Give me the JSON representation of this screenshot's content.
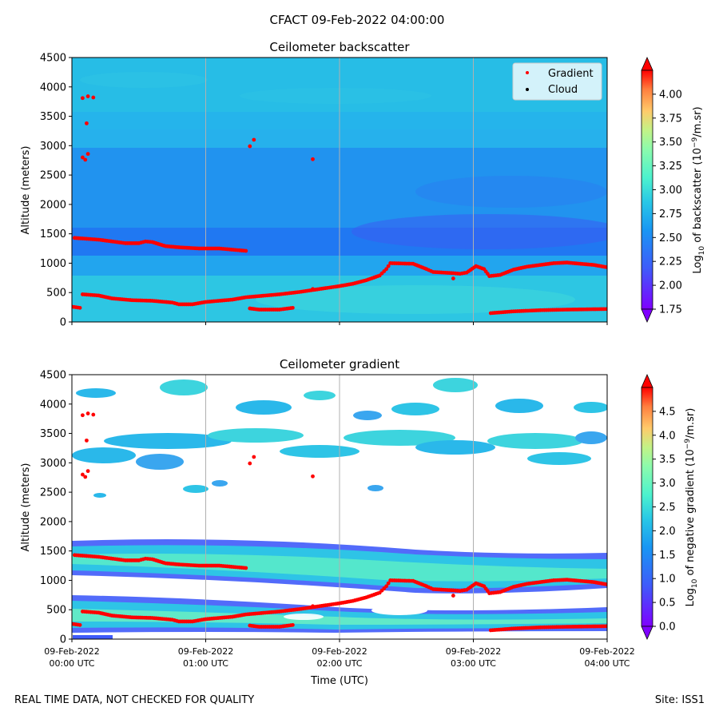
{
  "title": "CFACT 09-Feb-2022 04:00:00",
  "footer": {
    "left": "REAL TIME DATA, NOT CHECKED FOR QUALITY",
    "right": "Site: ISS1"
  },
  "x_axis": {
    "label": "Time (UTC)",
    "range_hours": [
      0,
      4
    ],
    "ticks": [
      {
        "h": 0,
        "date": "09-Feb-2022",
        "time": "00:00 UTC"
      },
      {
        "h": 1,
        "date": "09-Feb-2022",
        "time": "01:00 UTC"
      },
      {
        "h": 2,
        "date": "09-Feb-2022",
        "time": "02:00 UTC"
      },
      {
        "h": 3,
        "date": "09-Feb-2022",
        "time": "03:00 UTC"
      },
      {
        "h": 4,
        "date": "09-Feb-2022",
        "time": "04:00 UTC"
      }
    ]
  },
  "legend": {
    "items": [
      {
        "label": "Gradient",
        "color": "#ff0000"
      },
      {
        "label": "Cloud",
        "color": "#000000"
      }
    ]
  },
  "chart_data": [
    {
      "type": "heatmap",
      "title": "Ceilometer backscatter",
      "xlabel": "",
      "ylabel": "Altitude (meters)",
      "ylim": [
        0,
        4500
      ],
      "yticks": [
        0,
        500,
        1000,
        1500,
        2000,
        2500,
        3000,
        3500,
        4000,
        4500
      ],
      "colorbar": {
        "label": "Log10 of backscatter (10^-9/m.sr)",
        "range": [
          1.75,
          4.25
        ],
        "ticks": [
          "1.75",
          "2.00",
          "2.25",
          "2.50",
          "2.75",
          "3.00",
          "3.25",
          "3.50",
          "3.75",
          "4.00"
        ]
      },
      "legend_position": "top-right",
      "layers": [
        {
          "y_range": [
            3000,
            4500
          ],
          "value": 2.55
        },
        {
          "y_range": [
            1800,
            3000
          ],
          "value": 2.45
        },
        {
          "y_range": [
            1200,
            1800
          ],
          "value": 2.4
        },
        {
          "y_range": [
            0,
            1200
          ],
          "value": 2.65
        }
      ]
    },
    {
      "type": "heatmap",
      "title": "Ceilometer gradient",
      "xlabel": "Time (UTC)",
      "ylabel": "Altitude (meters)",
      "ylim": [
        0,
        4500
      ],
      "yticks": [
        0,
        500,
        1000,
        1500,
        2000,
        2500,
        3000,
        3500,
        4000,
        4500
      ],
      "colorbar": {
        "label": "Log10 of negative gradient (10^-9/m.sr)",
        "range": [
          0.0,
          5.0
        ],
        "ticks": [
          "0.0",
          "0.5",
          "1.0",
          "1.5",
          "2.0",
          "2.5",
          "3.0",
          "3.5",
          "4.0",
          "4.5"
        ]
      },
      "bands": [
        {
          "y_range": [
            1150,
            1650
          ],
          "value": 1.6
        },
        {
          "y_range": [
            250,
            750
          ],
          "value": 1.5
        },
        {
          "y_range": [
            3000,
            3600
          ],
          "value": 1.4
        },
        {
          "y_range": [
            3900,
            4150
          ],
          "value": 1.5
        }
      ]
    }
  ],
  "gradient_series": [
    {
      "name": "upper layer",
      "points": [
        [
          0.02,
          1430
        ],
        [
          0.2,
          1400
        ],
        [
          0.4,
          1340
        ],
        [
          0.5,
          1340
        ],
        [
          0.55,
          1370
        ],
        [
          0.6,
          1360
        ],
        [
          0.7,
          1290
        ],
        [
          0.8,
          1270
        ],
        [
          0.95,
          1250
        ],
        [
          1.1,
          1250
        ],
        [
          1.3,
          1210
        ]
      ]
    },
    {
      "name": "lower layer",
      "points": [
        [
          0.08,
          470
        ],
        [
          0.2,
          450
        ],
        [
          0.3,
          400
        ],
        [
          0.45,
          370
        ],
        [
          0.6,
          360
        ],
        [
          0.75,
          330
        ],
        [
          0.8,
          300
        ],
        [
          0.9,
          300
        ],
        [
          1.0,
          340
        ],
        [
          1.2,
          380
        ],
        [
          1.3,
          420
        ],
        [
          1.4,
          440
        ],
        [
          1.55,
          470
        ],
        [
          1.7,
          510
        ],
        [
          1.85,
          560
        ],
        [
          2.0,
          610
        ],
        [
          2.1,
          650
        ],
        [
          2.2,
          710
        ],
        [
          2.3,
          790
        ],
        [
          2.35,
          900
        ],
        [
          2.38,
          1000
        ],
        [
          2.55,
          990
        ],
        [
          2.65,
          900
        ],
        [
          2.7,
          850
        ],
        [
          2.85,
          830
        ],
        [
          2.9,
          820
        ],
        [
          2.95,
          840
        ],
        [
          3.02,
          950
        ],
        [
          3.08,
          900
        ],
        [
          3.12,
          780
        ],
        [
          3.2,
          800
        ],
        [
          3.3,
          890
        ],
        [
          3.4,
          940
        ],
        [
          3.5,
          970
        ],
        [
          3.6,
          1000
        ],
        [
          3.7,
          1010
        ],
        [
          3.8,
          990
        ],
        [
          3.9,
          970
        ],
        [
          4.0,
          930
        ]
      ]
    },
    {
      "name": "low segment 1",
      "points": [
        [
          0.0,
          260
        ],
        [
          0.06,
          240
        ]
      ]
    },
    {
      "name": "low segment 2",
      "points": [
        [
          1.33,
          230
        ],
        [
          1.4,
          210
        ],
        [
          1.55,
          210
        ],
        [
          1.65,
          240
        ]
      ]
    },
    {
      "name": "low segment 3",
      "points": [
        [
          3.13,
          150
        ],
        [
          3.3,
          180
        ],
        [
          3.5,
          200
        ],
        [
          3.7,
          210
        ],
        [
          3.85,
          215
        ],
        [
          4.0,
          220
        ]
      ]
    }
  ],
  "gradient_scatter": [
    [
      0.08,
      3810
    ],
    [
      0.12,
      3840
    ],
    [
      0.16,
      3820
    ],
    [
      0.11,
      3380
    ],
    [
      0.08,
      2800
    ],
    [
      0.1,
      2760
    ],
    [
      0.12,
      2860
    ],
    [
      1.33,
      2990
    ],
    [
      1.36,
      3100
    ],
    [
      1.8,
      2770
    ],
    [
      2.85,
      740
    ],
    [
      1.8,
      560
    ]
  ],
  "vertical_gridlines_hours": [
    1,
    2,
    3
  ]
}
